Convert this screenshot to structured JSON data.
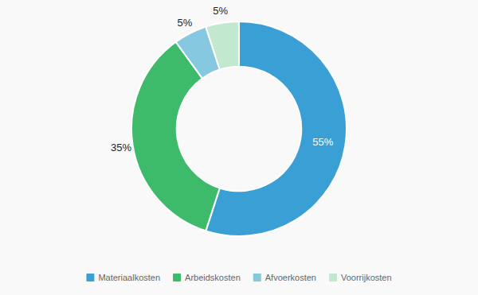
{
  "chart_data": {
    "type": "donut",
    "categories": [
      "Materiaalkosten",
      "Arbeidskosten",
      "Afvoerkosten",
      "Voorrijkosten"
    ],
    "values": [
      55,
      35,
      5,
      5
    ],
    "value_labels": [
      "55%",
      "35%",
      "5%",
      "5%"
    ],
    "colors": [
      "#3a9fd4",
      "#3dbb6a",
      "#85c8e0",
      "#c2e8cf"
    ],
    "data_labels": true,
    "legend": "bottom"
  }
}
